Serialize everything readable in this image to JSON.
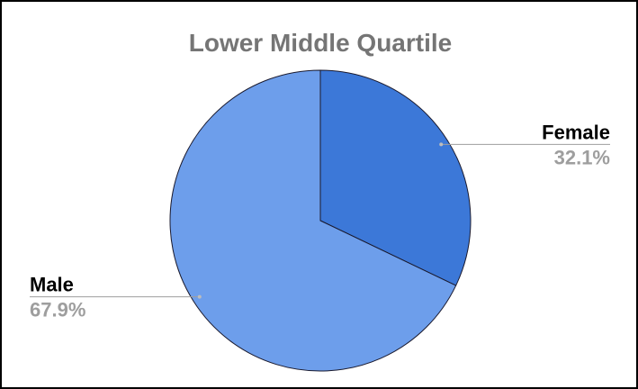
{
  "chart_data": {
    "type": "pie",
    "title": "Lower Middle Quartile",
    "categories": [
      "Female",
      "Male"
    ],
    "values": [
      32.1,
      67.9
    ],
    "value_labels": [
      "32.1%",
      "67.9%"
    ],
    "colors": [
      "#3c78d8",
      "#6d9eeb"
    ]
  }
}
